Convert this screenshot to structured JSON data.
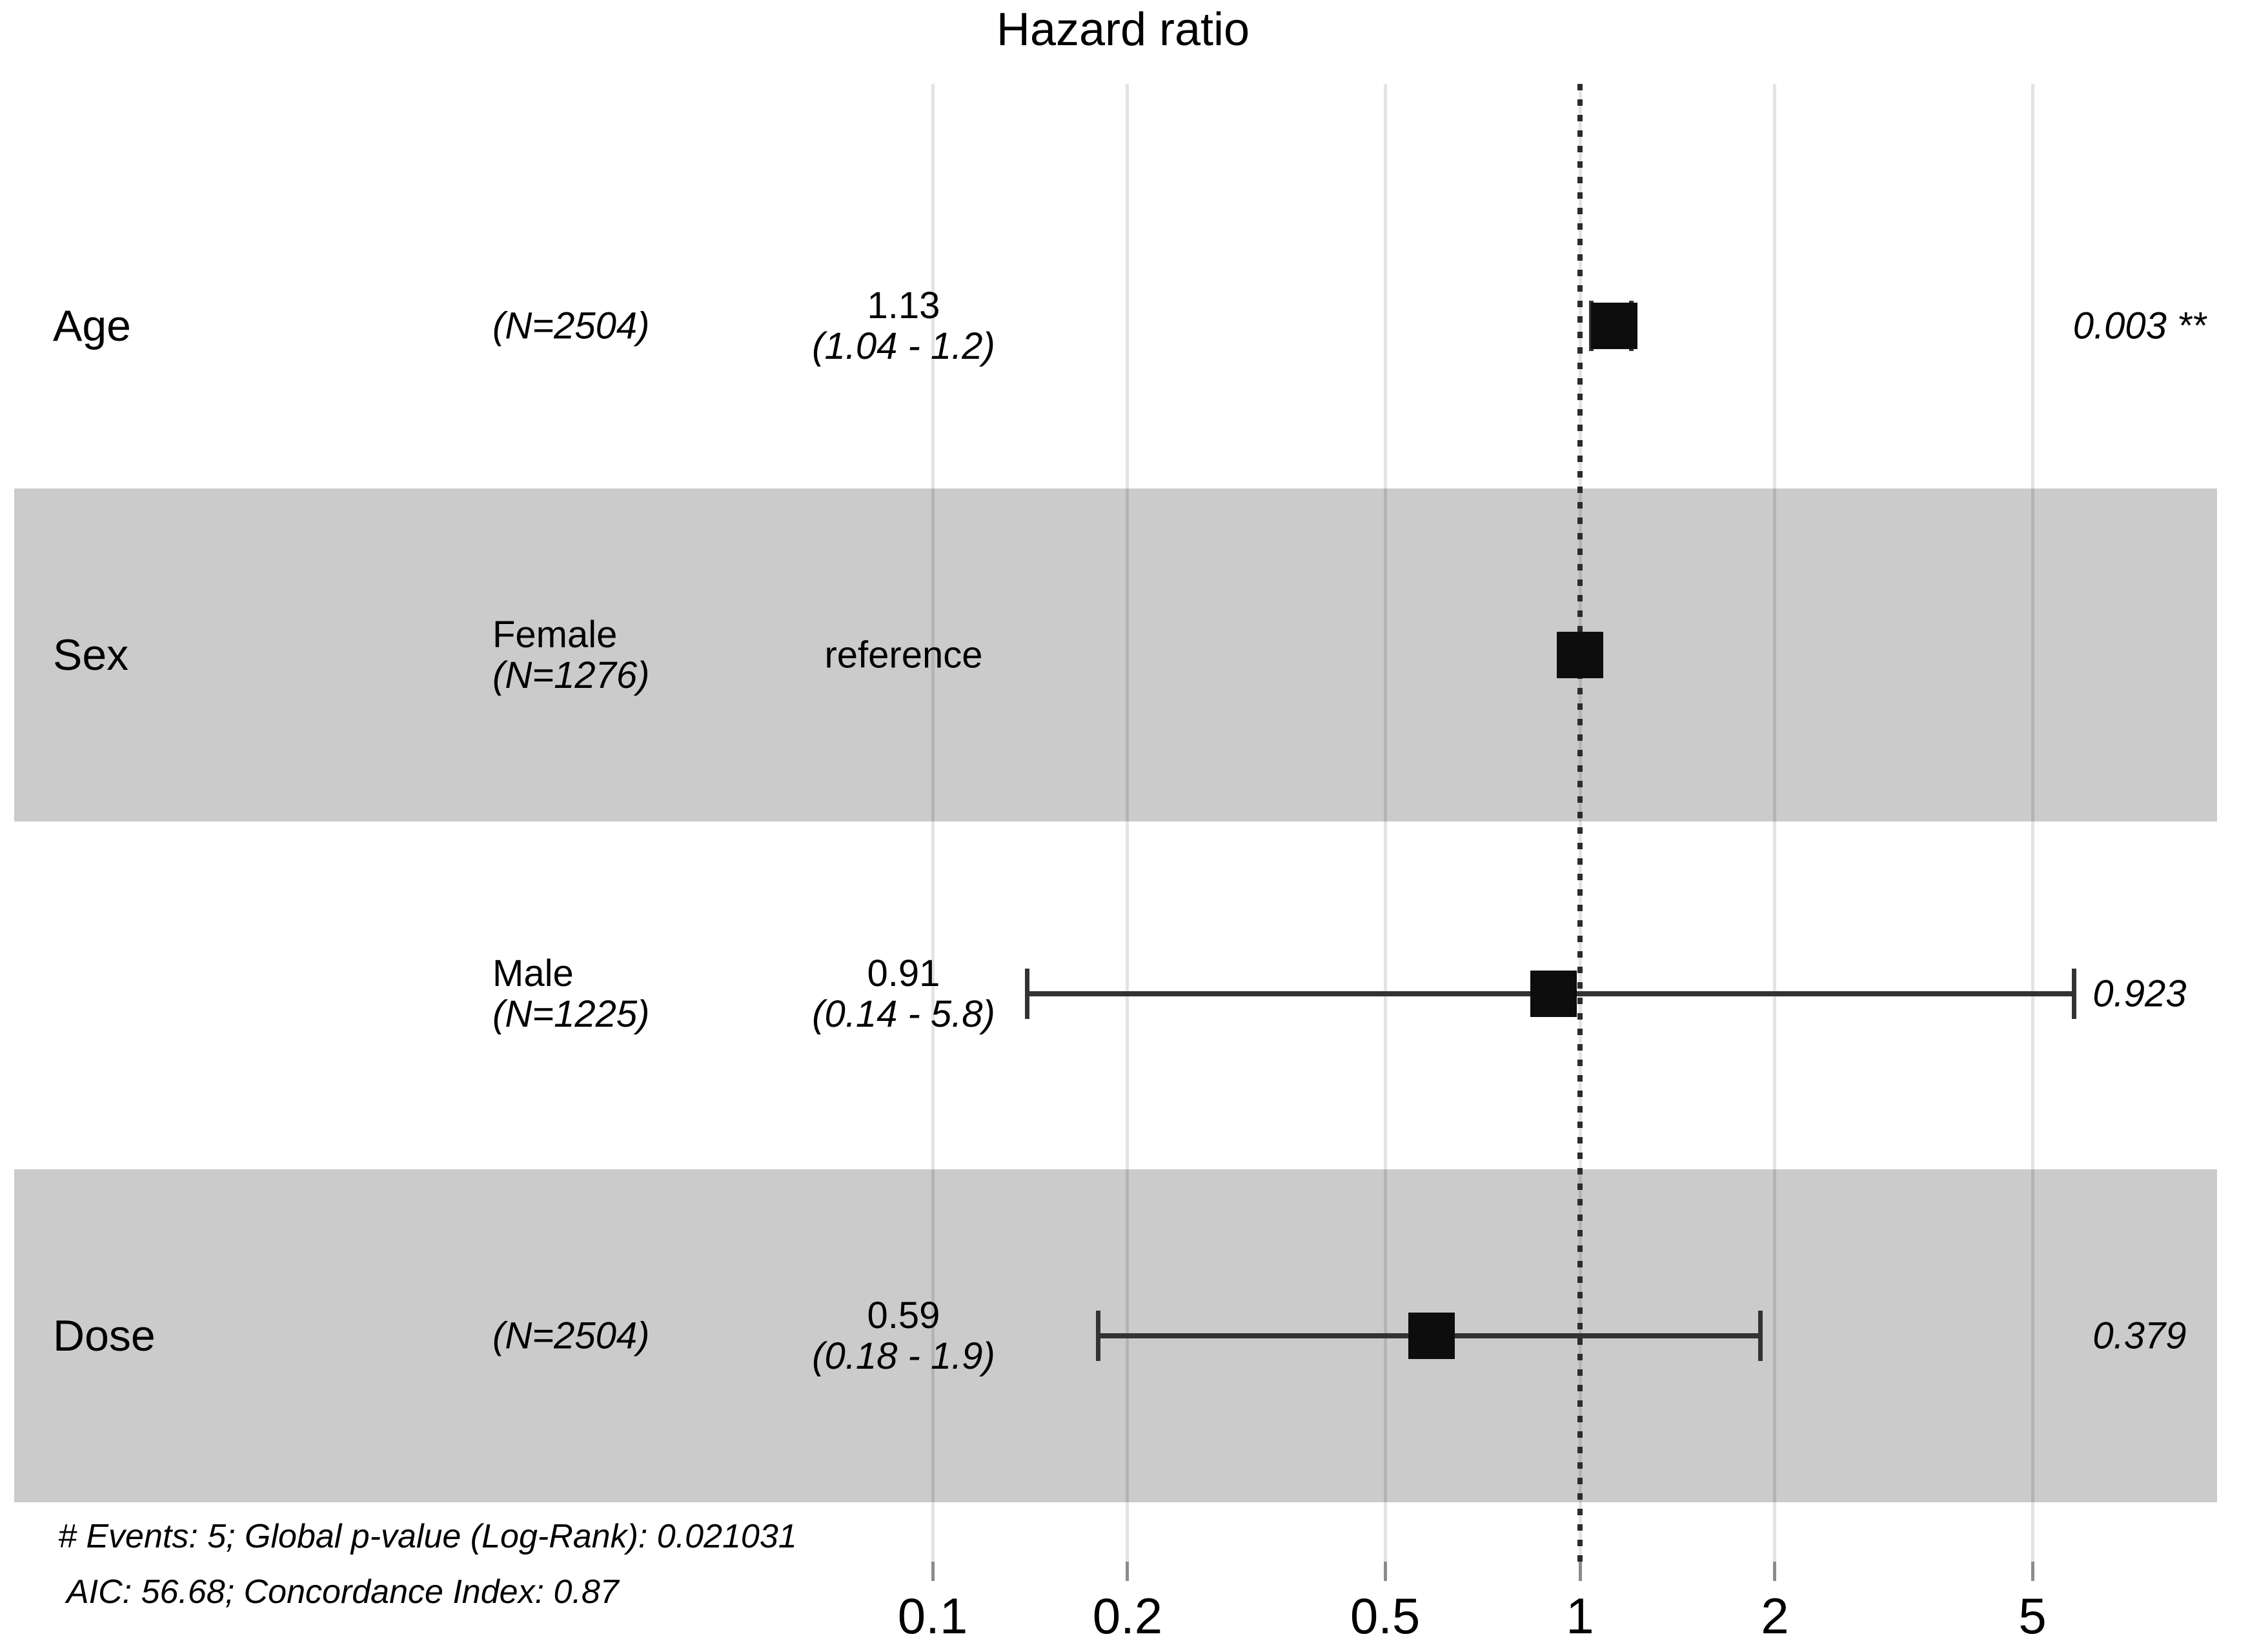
{
  "title": "Hazard ratio",
  "chart_data": {
    "type": "scatter",
    "subtype": "forest-plot-hazard-ratio",
    "title": "Hazard ratio",
    "x_scale": "log10",
    "x_ticks": [
      0.1,
      0.2,
      0.5,
      1,
      2,
      5
    ],
    "x_tick_labels": [
      "0.1",
      "0.2",
      "0.5",
      "1",
      "2",
      "5"
    ],
    "reference_value": 1,
    "grid": "vertical-gridlines-only",
    "legend_position": "none",
    "rows": [
      {
        "variable": "Age",
        "level": "",
        "n_label": "(N=2504)",
        "estimate_label": "1.13",
        "ci_label": "(1.04 - 1.2)",
        "p_label": "0.003 **",
        "hazard_ratio": 1.13,
        "ci_low": 1.04,
        "ci_high": 1.2,
        "p_value": 0.003,
        "significance": "**",
        "reference": false,
        "shaded": false
      },
      {
        "variable": "Sex",
        "level": "Female",
        "n_label": "(N=1276)",
        "estimate_label": "reference",
        "ci_label": "",
        "p_label": "",
        "hazard_ratio": 1,
        "ci_low": null,
        "ci_high": null,
        "p_value": null,
        "significance": "",
        "reference": true,
        "shaded": true
      },
      {
        "variable": "",
        "level": "Male",
        "n_label": "(N=1225)",
        "estimate_label": "0.91",
        "ci_label": "(0.14 - 5.8)",
        "p_label": "0.923",
        "hazard_ratio": 0.91,
        "ci_low": 0.14,
        "ci_high": 5.8,
        "p_value": 0.923,
        "significance": "",
        "reference": false,
        "shaded": false
      },
      {
        "variable": "Dose",
        "level": "",
        "n_label": "(N=2504)",
        "estimate_label": "0.59",
        "ci_label": "(0.18 - 1.9)",
        "p_label": "0.379",
        "hazard_ratio": 0.59,
        "ci_low": 0.18,
        "ci_high": 1.9,
        "p_value": 0.379,
        "significance": "",
        "reference": false,
        "shaded": true
      }
    ],
    "footer": {
      "line1": "# Events: 5; Global p-value (Log-Rank): 0.021031",
      "line2": "AIC: 56.68; Concordance Index: 0.87"
    }
  },
  "colors": {
    "background": "#ffffff",
    "band_effective": "#cbcbcb",
    "gridline": "#e3e3e3",
    "reference_line": "#2b2b2b",
    "marker": "#0d0d0d",
    "error_bar": "#333333",
    "tick_mark": "#8c8c8c",
    "text": "#000000"
  }
}
